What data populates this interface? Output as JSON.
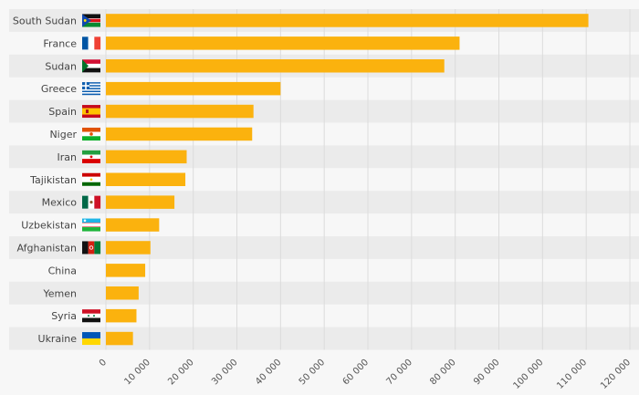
{
  "chart_data": {
    "type": "bar",
    "orientation": "horizontal",
    "categories": [
      "South Sudan",
      "France",
      "Sudan",
      "Greece",
      "Spain",
      "Niger",
      "Iran",
      "Tajikistan",
      "Mexico",
      "Uzbekistan",
      "Afghanistan",
      "China",
      "Yemen",
      "Syria",
      "Ukraine"
    ],
    "flags": [
      "south-sudan-flag-icon",
      "france-flag-icon",
      "sudan-flag-icon",
      "greece-flag-icon",
      "spain-flag-icon",
      "niger-flag-icon",
      "iran-flag-icon",
      "tajikistan-flag-icon",
      "mexico-flag-icon",
      "uzbekistan-flag-icon",
      "afghanistan-flag-icon",
      null,
      null,
      "syria-flag-icon",
      "ukraine-flag-icon"
    ],
    "values": [
      110500,
      81000,
      77500,
      40000,
      33800,
      33500,
      18500,
      18200,
      15700,
      12200,
      10200,
      9000,
      7500,
      7000,
      6200
    ],
    "xlim": [
      0,
      120000
    ],
    "xticks": [
      0,
      10000,
      20000,
      30000,
      40000,
      50000,
      60000,
      70000,
      80000,
      90000,
      100000,
      110000,
      120000
    ],
    "xtick_labels": [
      "0",
      "10 000",
      "20 000",
      "30 000",
      "40 000",
      "50 000",
      "60 000",
      "70 000",
      "80 000",
      "90 000",
      "100 000",
      "110 000",
      "120 000"
    ],
    "title": "",
    "xlabel": "",
    "ylabel": "",
    "grid": true,
    "bar_color": "#fbb20e",
    "band_color": "#ebebeb",
    "background": "#f7f7f7"
  }
}
